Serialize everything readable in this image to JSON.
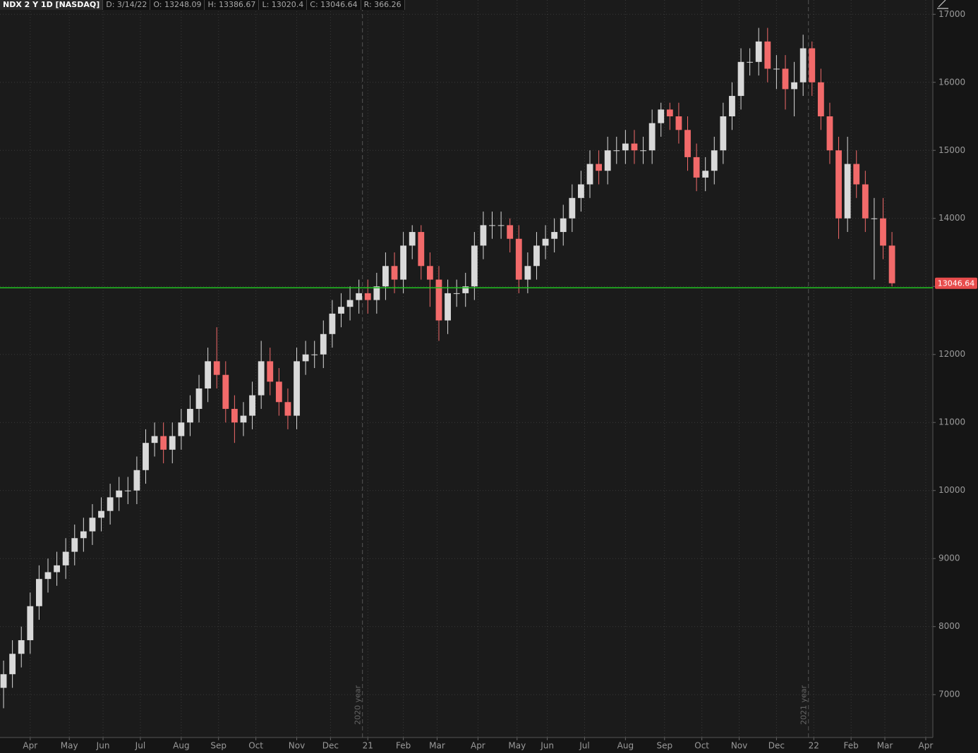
{
  "chart_data": {
    "type": "candlestick",
    "header": [
      "NDX 2 Y 1D [NASDAQ]",
      "D: 3/14/22",
      "O: 13248.09",
      "H: 13386.67",
      "L: 13020.4",
      "C: 13046.64",
      "R: 366.26"
    ],
    "last_price": 13046.64,
    "hline": {
      "value": 12980,
      "color": "#22c322"
    },
    "up_color": "#d9d9d9",
    "down_color": "#f26a6a",
    "grid": true,
    "ylim": [
      6370,
      17210
    ],
    "yticks": [
      7000,
      8000,
      9000,
      10000,
      11000,
      12000,
      13000,
      14000,
      15000,
      16000,
      17000
    ],
    "xlim": [
      -2,
      523
    ],
    "xticks": [
      {
        "value": 15,
        "label": "Apr"
      },
      {
        "value": 37,
        "label": "May"
      },
      {
        "value": 56,
        "label": "Jun"
      },
      {
        "value": 77,
        "label": "Jul"
      },
      {
        "value": 100,
        "label": "Aug"
      },
      {
        "value": 121,
        "label": "Sep"
      },
      {
        "value": 142,
        "label": "Oct"
      },
      {
        "value": 165,
        "label": "Nov"
      },
      {
        "value": 184,
        "label": "Dec"
      },
      {
        "value": 205,
        "label": "21"
      },
      {
        "value": 225,
        "label": "Feb"
      },
      {
        "value": 244,
        "label": "Mar"
      },
      {
        "value": 267,
        "label": "Apr"
      },
      {
        "value": 289,
        "label": "May"
      },
      {
        "value": 306,
        "label": "Jun"
      },
      {
        "value": 327,
        "label": "Jul"
      },
      {
        "value": 350,
        "label": "Aug"
      },
      {
        "value": 372,
        "label": "Sep"
      },
      {
        "value": 393,
        "label": "Oct"
      },
      {
        "value": 414,
        "label": "Nov"
      },
      {
        "value": 435,
        "label": "Dec"
      },
      {
        "value": 456,
        "label": "22"
      },
      {
        "value": 477,
        "label": "Feb"
      },
      {
        "value": 496,
        "label": "Mar"
      },
      {
        "value": 519,
        "label": "Apr"
      }
    ],
    "annotations": [
      {
        "x": 202,
        "label": "2020 year"
      },
      {
        "x": 453,
        "label": "2021 year"
      }
    ],
    "x": [
      0,
      5,
      10,
      15,
      20,
      25,
      30,
      35,
      40,
      45,
      50,
      55,
      60,
      65,
      70,
      75,
      80,
      85,
      90,
      95,
      100,
      105,
      110,
      115,
      120,
      125,
      130,
      135,
      140,
      145,
      150,
      155,
      160,
      165,
      170,
      175,
      180,
      185,
      190,
      195,
      200,
      205,
      210,
      215,
      220,
      225,
      230,
      235,
      240,
      245,
      250,
      255,
      260,
      265,
      270,
      275,
      280,
      285,
      290,
      295,
      300,
      305,
      310,
      315,
      320,
      325,
      330,
      335,
      340,
      345,
      350,
      355,
      360,
      365,
      370,
      375,
      380,
      385,
      390,
      395,
      400,
      405,
      410,
      415,
      420,
      425,
      430,
      435,
      440,
      445,
      450,
      455,
      460,
      465,
      470,
      475,
      480,
      485,
      490,
      495,
      500
    ],
    "open": [
      7100,
      7300,
      7600,
      7800,
      8300,
      8700,
      8800,
      8900,
      9100,
      9300,
      9400,
      9600,
      9700,
      9900,
      10000,
      10000,
      10300,
      10700,
      10800,
      10600,
      10800,
      11000,
      11200,
      11500,
      11900,
      11700,
      11200,
      11000,
      11100,
      11400,
      11900,
      11600,
      11300,
      11100,
      11900,
      12000,
      12000,
      12300,
      12600,
      12700,
      12800,
      12900,
      12800,
      13000,
      13300,
      13100,
      13600,
      13800,
      13300,
      13100,
      12500,
      12900,
      12900,
      13000,
      13600,
      13900,
      13900,
      13900,
      13700,
      13100,
      13300,
      13600,
      13700,
      13800,
      14000,
      14300,
      14500,
      14800,
      14700,
      15000,
      15000,
      15100,
      15000,
      15000,
      15400,
      15600,
      15500,
      15300,
      14900,
      14600,
      14700,
      15000,
      15500,
      15800,
      16300,
      16300,
      16600,
      16200,
      16200,
      15900,
      16000,
      16500,
      16000,
      15500,
      15000,
      14000,
      14800,
      14500,
      14000,
      14000,
      13600
    ],
    "close": [
      7300,
      7600,
      7800,
      8300,
      8700,
      8800,
      8900,
      9100,
      9300,
      9400,
      9600,
      9700,
      9900,
      10000,
      10000,
      10300,
      10700,
      10800,
      10600,
      10800,
      11000,
      11200,
      11500,
      11900,
      11700,
      11200,
      11000,
      11100,
      11400,
      11900,
      11600,
      11300,
      11100,
      11900,
      12000,
      12000,
      12300,
      12600,
      12700,
      12800,
      12900,
      12800,
      13000,
      13300,
      13100,
      13600,
      13800,
      13300,
      13100,
      12500,
      12900,
      12900,
      13000,
      13600,
      13900,
      13900,
      13900,
      13700,
      13100,
      13300,
      13600,
      13700,
      13800,
      14000,
      14300,
      14500,
      14800,
      14700,
      15000,
      15000,
      15100,
      15000,
      15000,
      15400,
      15600,
      15500,
      15300,
      14900,
      14600,
      14700,
      15000,
      15500,
      15800,
      16300,
      16300,
      16600,
      16200,
      16200,
      15900,
      16000,
      16500,
      16000,
      15500,
      15000,
      14000,
      14800,
      14500,
      14000,
      14000,
      13600,
      13046.64
    ],
    "high": [
      7500,
      7800,
      8000,
      8500,
      8900,
      9000,
      9100,
      9300,
      9500,
      9600,
      9800,
      9900,
      10100,
      10200,
      10200,
      10500,
      10900,
      11000,
      11000,
      11000,
      11200,
      11400,
      11700,
      12100,
      12400,
      11900,
      11400,
      11300,
      11600,
      12200,
      12100,
      11800,
      11500,
      12100,
      12200,
      12200,
      12500,
      12800,
      12900,
      13000,
      13100,
      13100,
      13200,
      13500,
      13500,
      13800,
      13900,
      13900,
      13500,
      13300,
      13100,
      13100,
      13200,
      13800,
      14100,
      14100,
      14100,
      14000,
      13900,
      13500,
      13800,
      13900,
      14000,
      14200,
      14500,
      14700,
      15000,
      15000,
      15200,
      15200,
      15300,
      15300,
      15200,
      15600,
      15700,
      15700,
      15700,
      15500,
      15100,
      14900,
      15200,
      15700,
      16000,
      16500,
      16500,
      16800,
      16800,
      16400,
      16400,
      16300,
      16700,
      16600,
      16200,
      15700,
      15200,
      15200,
      15000,
      14700,
      14300,
      14300,
      13800
    ],
    "low": [
      6800,
      7100,
      7400,
      7600,
      8100,
      8500,
      8600,
      8700,
      8900,
      9100,
      9200,
      9400,
      9500,
      9700,
      9800,
      9800,
      10100,
      10500,
      10400,
      10400,
      10600,
      10800,
      11000,
      11300,
      11500,
      11000,
      10700,
      10800,
      10900,
      11200,
      11400,
      11100,
      10900,
      10900,
      11700,
      11800,
      11800,
      12100,
      12400,
      12500,
      12600,
      12600,
      12600,
      12800,
      12900,
      12900,
      13400,
      13100,
      12700,
      12200,
      12300,
      12700,
      12700,
      12800,
      13400,
      13700,
      13700,
      13500,
      12900,
      12900,
      13100,
      13400,
      13500,
      13600,
      13800,
      14100,
      14300,
      14500,
      14500,
      14800,
      14800,
      14800,
      14800,
      14800,
      15200,
      15300,
      15100,
      14700,
      14400,
      14400,
      14500,
      14800,
      15300,
      15600,
      16100,
      16100,
      16000,
      15900,
      15600,
      15500,
      15800,
      15800,
      15300,
      14800,
      13700,
      13800,
      14300,
      13800,
      13100,
      13400,
      13000
    ]
  }
}
